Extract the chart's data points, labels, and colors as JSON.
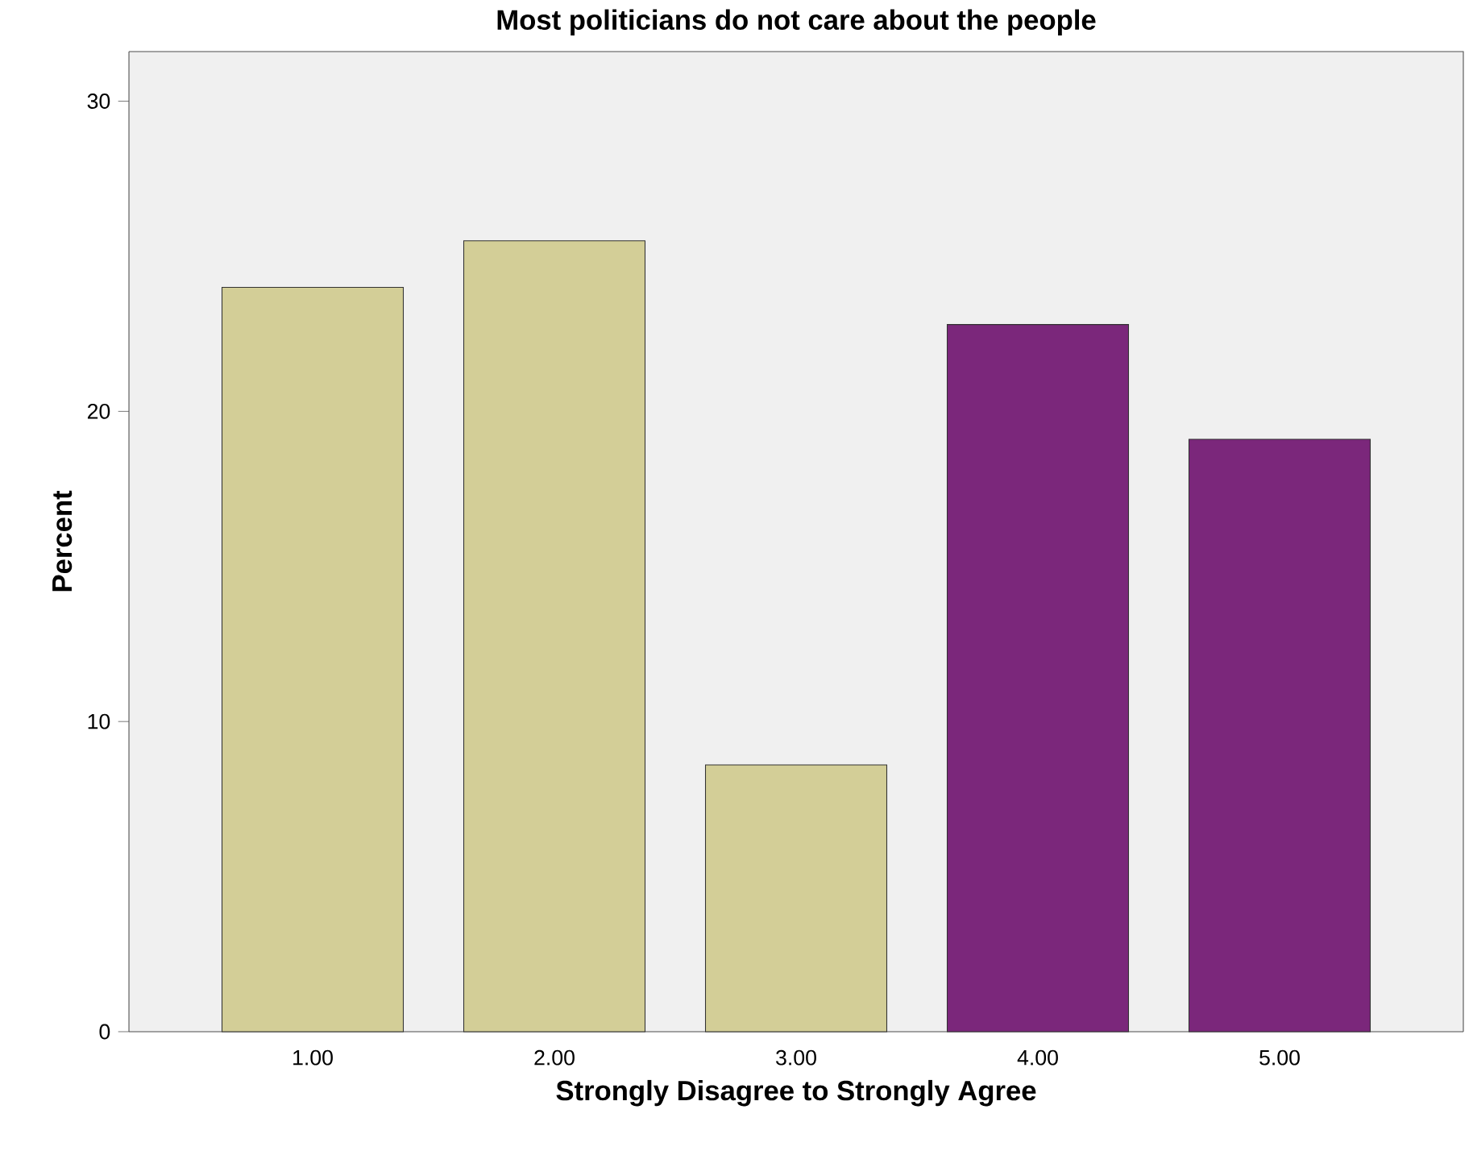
{
  "chart_data": {
    "type": "bar",
    "title": "Most politicians do not care about the people",
    "xlabel": "Strongly Disagree to Strongly Agree",
    "ylabel": "Percent",
    "categories": [
      "1.00",
      "2.00",
      "3.00",
      "4.00",
      "5.00"
    ],
    "values": [
      24.0,
      25.5,
      8.6,
      22.8,
      19.1
    ],
    "colors": [
      "#d3ce97",
      "#d3ce97",
      "#d3ce97",
      "#7b277b",
      "#7b277b"
    ],
    "ylim": [
      0,
      31.6
    ],
    "yticks": [
      0,
      10,
      20,
      30
    ]
  }
}
